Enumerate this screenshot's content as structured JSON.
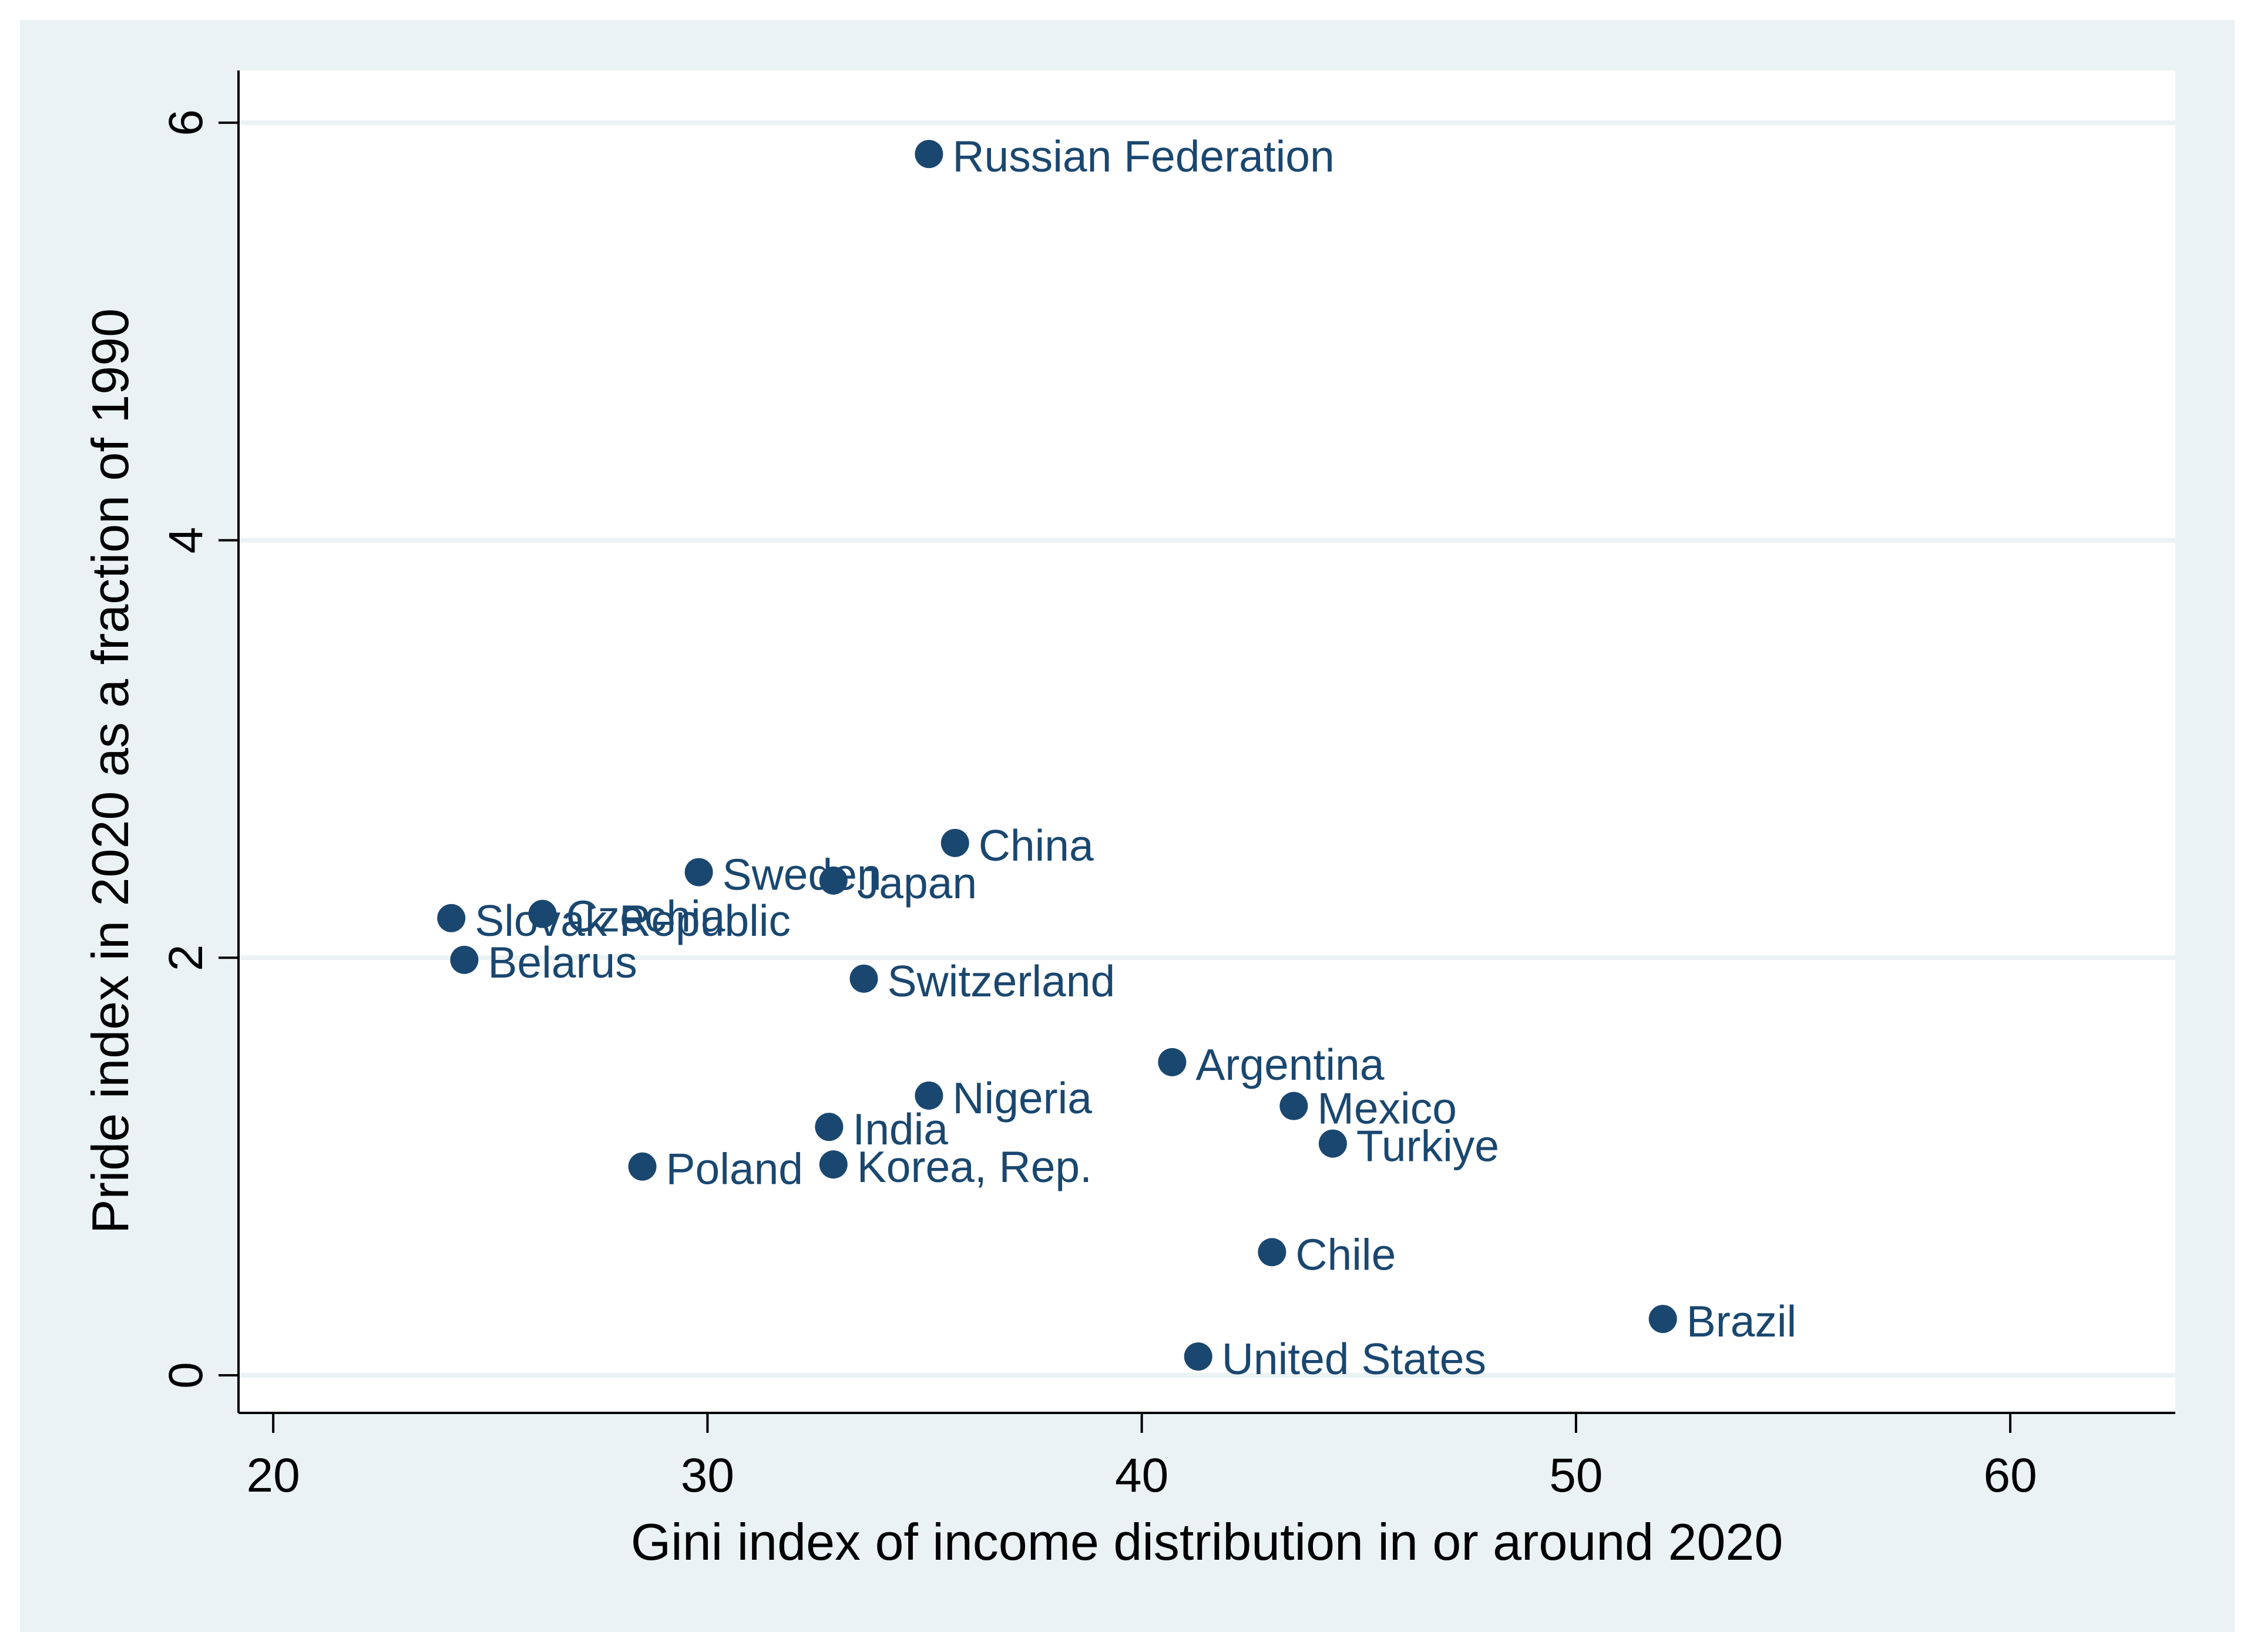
{
  "chart_data": {
    "type": "scatter",
    "title": "",
    "xlabel": "Gini index of income distribution in or around 2020",
    "ylabel": "Pride index in 2020 as a fraction of 1990",
    "xlim": [
      19.2,
      63.8
    ],
    "ylim": [
      -0.18,
      6.25
    ],
    "xticks": [
      20,
      30,
      40,
      50,
      60
    ],
    "yticks": [
      0,
      2,
      4,
      6
    ],
    "grid": "horizontal",
    "legend": "none",
    "colors": {
      "outer_background": "#eaf2f3",
      "plot_background": "#ffffff",
      "gridline": "#eaf2f3",
      "marker": "#1a476f",
      "label": "#1a476f",
      "axis": "#000000"
    },
    "points": [
      {
        "label": "Russian Federation",
        "x": 35.1,
        "y": 5.85
      },
      {
        "label": "China",
        "x": 35.7,
        "y": 2.55
      },
      {
        "label": "Sweden",
        "x": 29.8,
        "y": 2.41
      },
      {
        "label": "Japan",
        "x": 32.9,
        "y": 2.37
      },
      {
        "label": "Czechia",
        "x": 26.2,
        "y": 2.21
      },
      {
        "label": "Slovak Republic",
        "x": 24.1,
        "y": 2.19
      },
      {
        "label": "Belarus",
        "x": 24.4,
        "y": 1.99
      },
      {
        "label": "Switzerland",
        "x": 33.6,
        "y": 1.9
      },
      {
        "label": "Argentina",
        "x": 40.7,
        "y": 1.5
      },
      {
        "label": "Nigeria",
        "x": 35.1,
        "y": 1.34
      },
      {
        "label": "Mexico",
        "x": 43.5,
        "y": 1.29
      },
      {
        "label": "India",
        "x": 32.8,
        "y": 1.19
      },
      {
        "label": "Turkiye",
        "x": 44.4,
        "y": 1.11
      },
      {
        "label": "Poland",
        "x": 28.5,
        "y": 1.0
      },
      {
        "label": "Korea, Rep.",
        "x": 32.9,
        "y": 1.01
      },
      {
        "label": "Chile",
        "x": 43.0,
        "y": 0.59
      },
      {
        "label": "Brazil",
        "x": 52.0,
        "y": 0.27
      },
      {
        "label": "United States",
        "x": 41.3,
        "y": 0.09
      }
    ]
  }
}
